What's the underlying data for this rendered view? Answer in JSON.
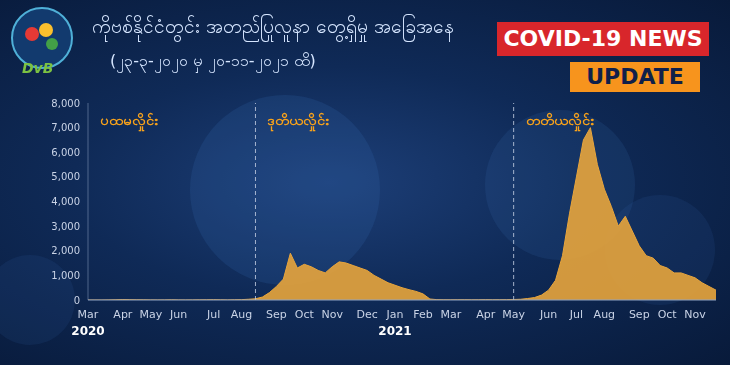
{
  "header": {
    "logo": "DvB",
    "badges": [
      "COVID-19 NEWS",
      "UPDATE"
    ]
  },
  "chart_data": {
    "type": "area",
    "title": "ကိုဗစ်နိုင်ငံတွင်း အတည်ပြုလူနာ တွေ့ရှိမှု အခြေအနေ",
    "subtitle": "(၂၃-၃-၂၀၂၀ မှ ၂၀-၁၁-၂၀၂၁ ထိ)",
    "color": "#e8a53c",
    "grid": false,
    "categories": [
      "Mar 2020",
      null,
      null,
      null,
      null,
      "Apr",
      null,
      null,
      null,
      "May",
      null,
      null,
      null,
      "Jun",
      null,
      null,
      null,
      null,
      "Jul",
      null,
      null,
      null,
      "Aug",
      null,
      null,
      null,
      null,
      "Sep",
      null,
      null,
      null,
      "Oct",
      null,
      null,
      null,
      "Nov",
      null,
      null,
      null,
      null,
      "Dec",
      null,
      null,
      null,
      "Jan 2021",
      null,
      null,
      null,
      "Feb",
      null,
      null,
      null,
      "Mar",
      null,
      null,
      null,
      null,
      "Apr",
      null,
      null,
      null,
      "May",
      null,
      null,
      null,
      null,
      "Jun",
      null,
      null,
      null,
      "Jul",
      null,
      null,
      null,
      "Aug",
      null,
      null,
      null,
      null,
      "Sep",
      null,
      null,
      null,
      "Oct",
      null,
      null,
      null,
      "Nov",
      null,
      null,
      null
    ],
    "values": [
      0,
      0,
      0,
      5,
      10,
      20,
      15,
      10,
      8,
      5,
      3,
      5,
      8,
      4,
      3,
      5,
      6,
      10,
      15,
      8,
      5,
      10,
      15,
      30,
      50,
      120,
      300,
      550,
      850,
      1900,
      1300,
      1450,
      1350,
      1200,
      1100,
      1350,
      1550,
      1500,
      1400,
      1300,
      1200,
      1000,
      850,
      700,
      600,
      500,
      420,
      350,
      250,
      40,
      15,
      10,
      8,
      10,
      12,
      8,
      10,
      15,
      10,
      12,
      15,
      20,
      30,
      60,
      100,
      200,
      400,
      800,
      1800,
      3500,
      5000,
      6500,
      7000,
      5500,
      4500,
      3800,
      3000,
      3400,
      2800,
      2200,
      1800,
      1700,
      1400,
      1300,
      1100,
      1100,
      1000,
      900,
      700,
      550,
      400
    ],
    "ylim": [
      0,
      8000
    ],
    "yticks": [
      0,
      {
        "value": 1000,
        "label": "1,000"
      },
      {
        "value": 2000,
        "label": "2,000"
      },
      {
        "value": 3000,
        "label": "3,000"
      },
      {
        "value": 4000,
        "label": "4,000"
      },
      {
        "value": 5000,
        "label": "5,000"
      },
      {
        "value": 6000,
        "label": "6,000"
      },
      {
        "value": 7000,
        "label": "7,000"
      },
      {
        "value": 8000,
        "label": "8,000"
      }
    ],
    "waves": [
      {
        "label": "ပထမလှိုင်း",
        "start": 0
      },
      {
        "label": "ဒုတိယလှိုင်း",
        "start": 24
      },
      {
        "label": "တတိယလှိုင်း",
        "start": 61
      }
    ]
  }
}
